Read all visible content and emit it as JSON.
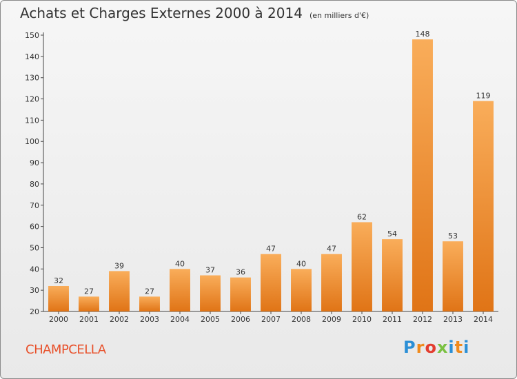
{
  "header": {
    "title": "Achats et Charges Externes 2000 à 2014",
    "unit": "(en milliers d'€)"
  },
  "footer": {
    "commune": "CHAMPCELLA",
    "logo_text": "Proxiti",
    "logo_letters": [
      "P",
      "r",
      "o",
      "x",
      "i",
      "t",
      "i"
    ],
    "logo_colors": [
      "#2b8fd6",
      "#f08a1c",
      "#e33d2f",
      "#7ac142",
      "#2b8fd6",
      "#f08a1c",
      "#2b8fd6"
    ]
  },
  "colors": {
    "bar_light": "#f7a54f",
    "bar_dark": "#e47a1d",
    "text": "#333333",
    "commune": "#e8502a"
  },
  "chart_data": {
    "type": "bar",
    "title": "Achats et Charges Externes 2000 à 2014",
    "subtitle": "(en milliers d'€)",
    "categories": [
      "2000",
      "2001",
      "2002",
      "2003",
      "2004",
      "2005",
      "2006",
      "2007",
      "2008",
      "2009",
      "2010",
      "2011",
      "2012",
      "2013",
      "2014"
    ],
    "values": [
      32,
      27,
      39,
      27,
      40,
      37,
      36,
      47,
      40,
      47,
      62,
      54,
      148,
      53,
      119
    ],
    "xlabel": "",
    "ylabel": "",
    "ylim": [
      20,
      150
    ],
    "yticks": [
      20,
      30,
      40,
      50,
      60,
      70,
      80,
      90,
      100,
      110,
      120,
      130,
      140,
      150
    ],
    "grid": false,
    "legend": "none"
  }
}
